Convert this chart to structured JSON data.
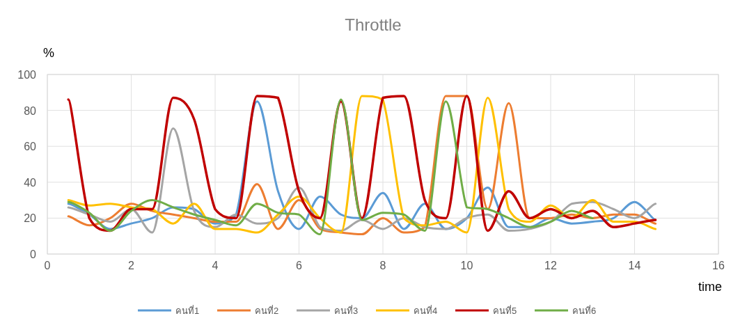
{
  "chart_data": {
    "type": "line",
    "title": "Throttle",
    "xlabel": "time",
    "ylabel": "%",
    "x": [
      0.5,
      1,
      1.5,
      2,
      2.5,
      3,
      3.5,
      4,
      4.5,
      5,
      5.5,
      6,
      6.5,
      7,
      7.5,
      8,
      8.5,
      9,
      9.5,
      10,
      10.5,
      11,
      11.5,
      12,
      12.5,
      13,
      13.5,
      14,
      14.5
    ],
    "xlim": [
      0,
      16
    ],
    "xticks": [
      0,
      2,
      4,
      6,
      8,
      10,
      12,
      14,
      16
    ],
    "ylim": [
      0,
      100
    ],
    "yticks": [
      0,
      20,
      40,
      60,
      80,
      100
    ],
    "grid": true,
    "legend": "bottom",
    "marker": "none",
    "line_style": "solid",
    "series": [
      {
        "name": "คนที่1",
        "color": "#5b9bd5",
        "values": [
          28,
          22,
          14,
          17,
          20,
          26,
          25,
          17,
          22,
          85,
          35,
          14,
          32,
          22,
          20,
          34,
          14,
          28,
          14,
          20,
          37,
          15,
          15,
          20,
          17,
          18,
          20,
          29,
          19
        ]
      },
      {
        "name": "คนที่2",
        "color": "#ed7d31",
        "values": [
          21,
          16,
          20,
          28,
          24,
          22,
          20,
          18,
          18,
          39,
          14,
          30,
          14,
          12,
          11,
          20,
          12,
          15,
          88,
          88,
          25,
          84,
          20,
          20,
          22,
          20,
          22,
          22,
          17
        ]
      },
      {
        "name": "คนที่3",
        "color": "#a5a5a5",
        "values": [
          26,
          22,
          18,
          25,
          12,
          70,
          24,
          15,
          22,
          17,
          20,
          37,
          15,
          13,
          19,
          14,
          20,
          15,
          14,
          20,
          22,
          13,
          14,
          18,
          28,
          29,
          25,
          20,
          28
        ]
      },
      {
        "name": "คนที่4",
        "color": "#ffc000",
        "values": [
          30,
          27,
          28,
          26,
          25,
          17,
          28,
          14,
          14,
          12,
          22,
          32,
          20,
          12,
          88,
          86,
          20,
          16,
          18,
          12,
          87,
          25,
          18,
          27,
          20,
          30,
          18,
          18,
          14
        ]
      },
      {
        "name": "คนที่5",
        "color": "#c00000",
        "values": [
          86,
          20,
          13,
          25,
          25,
          87,
          75,
          25,
          20,
          88,
          87,
          35,
          20,
          85,
          20,
          87,
          88,
          30,
          20,
          88,
          13,
          35,
          20,
          25,
          20,
          24,
          15,
          17,
          19
        ]
      },
      {
        "name": "คนที่6",
        "color": "#70ad47",
        "values": [
          29,
          23,
          13,
          24,
          30,
          26,
          22,
          19,
          16,
          28,
          23,
          22,
          11,
          86,
          19,
          23,
          22,
          13,
          85,
          26,
          25,
          20,
          15,
          18,
          24,
          20,
          null,
          null,
          null
        ]
      }
    ]
  }
}
